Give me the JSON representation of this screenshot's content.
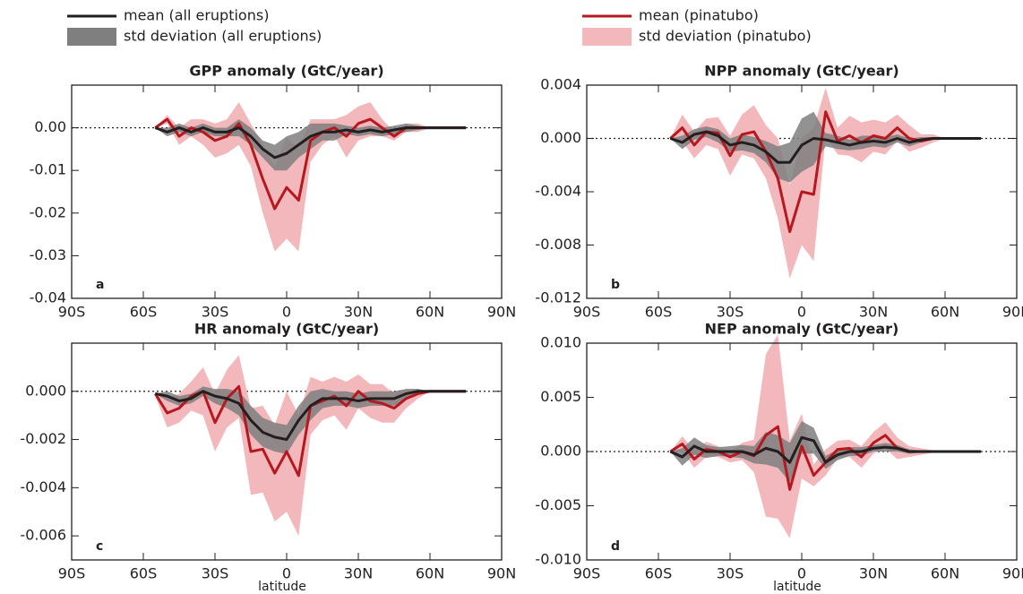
{
  "chart_data": [
    {
      "type": "line",
      "title": "GPP anomaly (GtC/year)",
      "panel_label": "a",
      "x": [
        -55,
        -50,
        -45,
        -40,
        -35,
        -30,
        -25,
        -20,
        -15,
        -10,
        -5,
        0,
        5,
        10,
        15,
        20,
        25,
        30,
        35,
        40,
        45,
        50,
        55,
        60,
        65,
        70,
        75
      ],
      "xlim": [
        -90,
        90
      ],
      "xticks": [
        {
          "value": -90,
          "label": "90S"
        },
        {
          "value": -60,
          "label": "60S"
        },
        {
          "value": -30,
          "label": "30S"
        },
        0,
        {
          "value": 30,
          "label": "30N"
        },
        {
          "value": 60,
          "label": "60N"
        },
        {
          "value": 90,
          "label": "90N"
        }
      ],
      "ylim": [
        -0.04,
        0.01
      ],
      "yticks": [
        {
          "value": 0,
          "label": "0.00"
        },
        {
          "value": -0.01,
          "label": "-0.01"
        },
        {
          "value": -0.02,
          "label": "-0.02"
        },
        {
          "value": -0.03,
          "label": "-0.03"
        },
        {
          "value": -0.04,
          "label": "-0.04"
        }
      ],
      "series": [
        {
          "name": "mean (all eruptions)",
          "type": "line",
          "color": "#231f20",
          "values": [
            0,
            -0.001,
            0,
            -0.001,
            0,
            -0.001,
            -0.001,
            0,
            -0.002,
            -0.005,
            -0.007,
            -0.006,
            -0.004,
            -0.002,
            -0.001,
            -0.001,
            -0.0005,
            -0.001,
            -0.0005,
            -0.001,
            -0.0005,
            0,
            0,
            0,
            0,
            0,
            0
          ]
        },
        {
          "name": "std deviation (all eruptions)",
          "type": "band",
          "color": "#7f7f7f",
          "values": [
            0,
            0.001,
            0.001,
            0.001,
            0.001,
            0.001,
            0.001,
            0.002,
            0.002,
            0.002,
            0.003,
            0.004,
            0.003,
            0.003,
            0.002,
            0.002,
            0.001,
            0.001,
            0.001,
            0.001,
            0.001,
            0.001,
            0.0005,
            0,
            0,
            0,
            0
          ]
        },
        {
          "name": "mean (pinatubo)",
          "type": "line",
          "color": "#b5181f",
          "values": [
            0,
            0.002,
            -0.002,
            0,
            -0.001,
            -0.003,
            -0.002,
            0.001,
            -0.004,
            -0.012,
            -0.019,
            -0.014,
            -0.017,
            -0.003,
            -0.001,
            0,
            -0.002,
            0.001,
            0.002,
            0,
            -0.002,
            0,
            0,
            0,
            0,
            0,
            0
          ]
        },
        {
          "name": "std deviation (pinatubo)",
          "type": "band",
          "color": "#f2b8bb",
          "values": [
            0,
            0.001,
            0.002,
            0.002,
            0.003,
            0.004,
            0.004,
            0.005,
            0.005,
            0.008,
            0.01,
            0.012,
            0.012,
            0.005,
            0.003,
            0.002,
            0.005,
            0.004,
            0.004,
            0.002,
            0.001,
            0.001,
            0.001,
            0,
            0,
            0,
            0
          ]
        }
      ]
    },
    {
      "type": "line",
      "title": "NPP anomaly (GtC/year)",
      "panel_label": "b",
      "x": [
        -55,
        -50,
        -45,
        -40,
        -35,
        -30,
        -25,
        -20,
        -15,
        -10,
        -5,
        0,
        5,
        10,
        15,
        20,
        25,
        30,
        35,
        40,
        45,
        50,
        55,
        60,
        65,
        70,
        75
      ],
      "xlim": [
        -90,
        90
      ],
      "xticks": [
        {
          "value": -90,
          "label": "90S"
        },
        {
          "value": -60,
          "label": "60S"
        },
        {
          "value": -30,
          "label": "30S"
        },
        0,
        {
          "value": 30,
          "label": "30N"
        },
        {
          "value": 60,
          "label": "60N"
        },
        {
          "value": 90,
          "label": "90N"
        }
      ],
      "ylim": [
        -0.012,
        0.004
      ],
      "yticks": [
        {
          "value": 0.004,
          "label": "0.004"
        },
        {
          "value": 0,
          "label": "0.000"
        },
        {
          "value": -0.004,
          "label": "-0.004"
        },
        {
          "value": -0.008,
          "label": "-0.008"
        },
        {
          "value": -0.012,
          "label": "-0.012"
        }
      ],
      "series": [
        {
          "type": "line",
          "color": "#231f20",
          "values": [
            0,
            -0.0003,
            0.0003,
            0.0005,
            0.0002,
            -0.0005,
            -0.0003,
            -0.0005,
            -0.001,
            -0.0018,
            -0.0018,
            -0.0005,
            0,
            -0.0001,
            -0.0003,
            -0.0005,
            -0.0003,
            -0.0002,
            -0.0003,
            0,
            -0.0003,
            -0.0001,
            0,
            0,
            0,
            0,
            0
          ]
        },
        {
          "type": "band",
          "color": "#7f7f7f",
          "values": [
            0,
            0.0005,
            0.0004,
            0.0004,
            0.0005,
            0.0005,
            0.0006,
            0.0006,
            0.0008,
            0.0012,
            0.0015,
            0.002,
            0.002,
            0.0005,
            0.0005,
            0.0004,
            0.0005,
            0.0004,
            0.0004,
            0.0003,
            0.0003,
            0.0002,
            0.0001,
            0,
            0,
            0,
            0
          ]
        },
        {
          "type": "line",
          "color": "#b5181f",
          "values": [
            0,
            0.0008,
            -0.0005,
            0.0005,
            0.0004,
            -0.0013,
            0.0003,
            0.0005,
            -0.001,
            -0.003,
            -0.007,
            -0.004,
            -0.0042,
            0.002,
            -0.0002,
            0.0002,
            -0.0003,
            0.0002,
            0,
            0.0008,
            0,
            -0.0002,
            0,
            0,
            0,
            0,
            0
          ]
        },
        {
          "type": "band",
          "color": "#f2b8bb",
          "values": [
            0,
            0.001,
            0.001,
            0.001,
            0.0012,
            0.0015,
            0.0015,
            0.002,
            0.002,
            0.003,
            0.0035,
            0.004,
            0.005,
            0.0018,
            0.001,
            0.0015,
            0.0015,
            0.0012,
            0.0012,
            0.001,
            0.001,
            0.0005,
            0.0003,
            0,
            0,
            0,
            0
          ]
        }
      ]
    },
    {
      "type": "line",
      "title": "HR anomaly (GtC/year)",
      "panel_label": "c",
      "xlabel": "latitude",
      "x": [
        -55,
        -50,
        -45,
        -40,
        -35,
        -30,
        -25,
        -20,
        -15,
        -10,
        -5,
        0,
        5,
        10,
        15,
        20,
        25,
        30,
        35,
        40,
        45,
        50,
        55,
        60,
        65,
        70,
        75
      ],
      "xlim": [
        -90,
        90
      ],
      "xticks": [
        {
          "value": -90,
          "label": "90S"
        },
        {
          "value": -60,
          "label": "60S"
        },
        {
          "value": -30,
          "label": "30S"
        },
        0,
        {
          "value": 30,
          "label": "30N"
        },
        {
          "value": 60,
          "label": "60N"
        },
        {
          "value": 90,
          "label": "90N"
        }
      ],
      "ylim": [
        -0.007,
        0.002
      ],
      "yticks": [
        {
          "value": 0,
          "label": "0.000"
        },
        {
          "value": -0.002,
          "label": "-0.002"
        },
        {
          "value": -0.004,
          "label": "-0.004"
        },
        {
          "value": -0.006,
          "label": "-0.006"
        }
      ],
      "series": [
        {
          "type": "line",
          "color": "#231f20",
          "values": [
            -0.0001,
            -0.0002,
            -0.0004,
            -0.0003,
            0,
            -0.0002,
            -0.0003,
            -0.0005,
            -0.0012,
            -0.0017,
            -0.0019,
            -0.002,
            -0.0012,
            -0.0006,
            -0.0003,
            -0.0003,
            -0.0003,
            -0.0004,
            -0.0003,
            -0.0003,
            -0.0003,
            -0.0001,
            0,
            0,
            0,
            0,
            0
          ]
        },
        {
          "type": "band",
          "color": "#7f7f7f",
          "values": [
            0,
            0.0002,
            0.0002,
            0.0002,
            0.0002,
            0.0003,
            0.0004,
            0.0005,
            0.0006,
            0.0006,
            0.0006,
            0.0006,
            0.0006,
            0.0006,
            0.0004,
            0.0003,
            0.0003,
            0.0003,
            0.0003,
            0.0003,
            0.0003,
            0.0002,
            0.0001,
            0,
            0,
            0,
            0
          ]
        },
        {
          "type": "line",
          "color": "#b5181f",
          "values": [
            -0.0001,
            -0.0009,
            -0.0007,
            -0.0002,
            0,
            -0.0013,
            -0.0003,
            0.0002,
            -0.0025,
            -0.0024,
            -0.0034,
            -0.0025,
            -0.0035,
            -0.0006,
            -0.0004,
            -0.0002,
            -0.0006,
            0,
            -0.0004,
            -0.0005,
            -0.0007,
            -0.0003,
            -0.0001,
            0,
            0,
            0,
            0
          ]
        },
        {
          "type": "band",
          "color": "#f2b8bb",
          "values": [
            0.0001,
            0.0006,
            0.0006,
            0.0006,
            0.001,
            0.0012,
            0.0012,
            0.0013,
            0.0018,
            0.0018,
            0.002,
            0.0025,
            0.0025,
            0.0012,
            0.0008,
            0.0008,
            0.001,
            0.0007,
            0.0007,
            0.0008,
            0.0006,
            0.0004,
            0.0002,
            0,
            0,
            0,
            0
          ]
        }
      ]
    },
    {
      "type": "line",
      "title": "NEP anomaly (GtC/year)",
      "panel_label": "d",
      "xlabel": "latitude",
      "x": [
        -55,
        -50,
        -45,
        -40,
        -35,
        -30,
        -25,
        -20,
        -15,
        -10,
        -5,
        0,
        5,
        10,
        15,
        20,
        25,
        30,
        35,
        40,
        45,
        50,
        55,
        60,
        65,
        70,
        75
      ],
      "xlim": [
        -90,
        90
      ],
      "xticks": [
        {
          "value": -90,
          "label": "90S"
        },
        {
          "value": -60,
          "label": "60S"
        },
        {
          "value": -30,
          "label": "30S"
        },
        0,
        {
          "value": 30,
          "label": "30N"
        },
        {
          "value": 60,
          "label": "60N"
        },
        {
          "value": 90,
          "label": "90N"
        }
      ],
      "ylim": [
        -0.01,
        0.01
      ],
      "yticks": [
        {
          "value": 0.01,
          "label": "0.010"
        },
        {
          "value": 0.005,
          "label": "0.005"
        },
        {
          "value": 0,
          "label": "0.000"
        },
        {
          "value": -0.005,
          "label": "-0.005"
        },
        {
          "value": -0.01,
          "label": "-0.010"
        }
      ],
      "series": [
        {
          "type": "line",
          "color": "#231f20",
          "values": [
            0,
            -0.0005,
            0.0005,
            0,
            0,
            0,
            0,
            -0.0003,
            0.0003,
            0,
            -0.001,
            0.0013,
            0.001,
            -0.001,
            -0.0003,
            0,
            0,
            0.0003,
            0.0004,
            0.0003,
            0,
            0,
            0,
            0,
            0,
            0,
            0
          ]
        },
        {
          "type": "band",
          "color": "#7f7f7f",
          "values": [
            0,
            0.0008,
            0.0008,
            0.0006,
            0.0004,
            0.0005,
            0.0006,
            0.0008,
            0.0015,
            0.0015,
            0.0018,
            0.0015,
            0.0012,
            0.0006,
            0.0005,
            0.0004,
            0.0004,
            0.0003,
            0.0004,
            0.0003,
            0.0002,
            0.0001,
            0,
            0,
            0,
            0,
            0
          ]
        },
        {
          "type": "line",
          "color": "#b5181f",
          "values": [
            0,
            0.0007,
            -0.0007,
            0.0002,
            0,
            -0.0005,
            0,
            -0.0004,
            0.0015,
            0.0023,
            -0.0035,
            0.0005,
            -0.0022,
            -0.001,
            0.0002,
            0.0003,
            -0.0005,
            0.0008,
            0.0015,
            0.0003,
            0,
            0,
            0,
            0,
            0,
            0,
            0
          ]
        },
        {
          "type": "band",
          "color": "#f2b8bb",
          "values": [
            0,
            0.0007,
            0.0008,
            0.0007,
            0.0005,
            0.0005,
            0.0008,
            0.0015,
            0.0075,
            0.0085,
            0.0045,
            0.003,
            0.001,
            0.0012,
            0.0008,
            0.0008,
            0.001,
            0.001,
            0.0012,
            0.001,
            0.0005,
            0.0003,
            0.0001,
            0,
            0,
            0,
            0
          ]
        }
      ]
    }
  ]
}
